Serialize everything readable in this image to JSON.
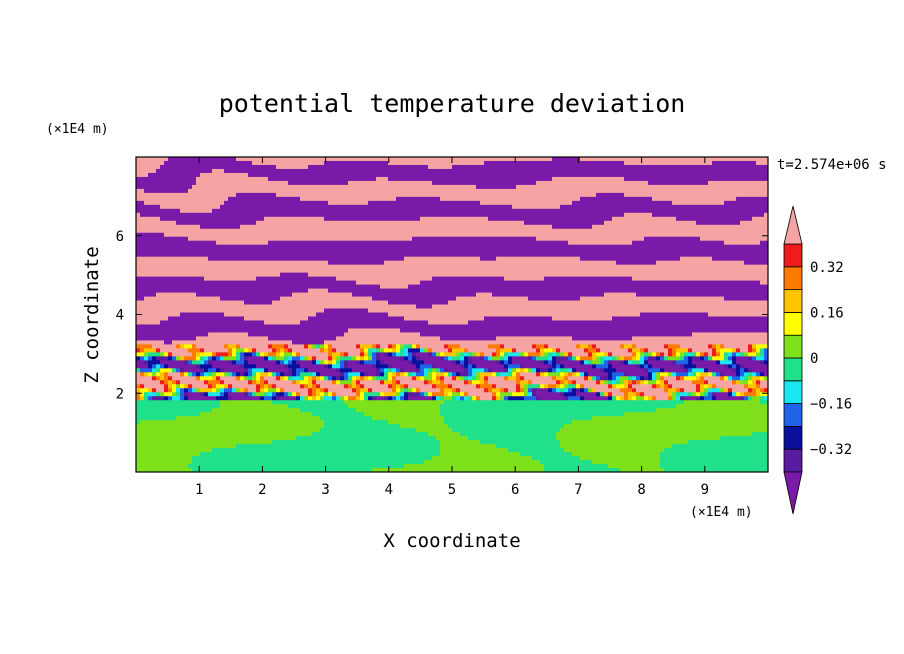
{
  "chart_data": {
    "type": "heatmap",
    "title": "potential temperature deviation",
    "xlabel": "X coordinate",
    "ylabel": "Z coordinate",
    "x_unit": "(×1E4 m)",
    "y_unit": "(×1E4 m)",
    "time_label": "t=2.574e+06 s",
    "xlim": [
      0,
      10
    ],
    "ylim": [
      0,
      8
    ],
    "x_ticks": [
      "1",
      "2",
      "3",
      "4",
      "5",
      "6",
      "7",
      "8",
      "9"
    ],
    "y_ticks": [
      "2",
      "4",
      "6"
    ],
    "colorbar": {
      "levels": [
        {
          "min": null,
          "max": -0.4,
          "color": "#7a1aa8",
          "extend": "min"
        },
        {
          "min": -0.4,
          "max": -0.32,
          "color": "#5b1ba0"
        },
        {
          "min": -0.32,
          "max": -0.24,
          "color": "#0b0f9e"
        },
        {
          "min": -0.24,
          "max": -0.16,
          "color": "#1e63e8"
        },
        {
          "min": -0.16,
          "max": -0.08,
          "color": "#19e6f0"
        },
        {
          "min": -0.08,
          "max": 0,
          "color": "#20e08a"
        },
        {
          "min": 0,
          "max": 0.08,
          "color": "#7fe01c"
        },
        {
          "min": 0.08,
          "max": 0.16,
          "color": "#ffff00"
        },
        {
          "min": 0.16,
          "max": 0.24,
          "color": "#ffc400"
        },
        {
          "min": 0.24,
          "max": 0.32,
          "color": "#ff7a00"
        },
        {
          "min": 0.32,
          "max": 0.4,
          "color": "#ee1c1c"
        },
        {
          "min": 0.4,
          "max": null,
          "color": "#f5a3a3",
          "extend": "max"
        }
      ],
      "tick_labels": [
        "0.32",
        "0.16",
        "0",
        "−0.16",
        "−0.32"
      ]
    },
    "regions": [
      {
        "z_range": [
          0,
          1.8
        ],
        "description": "lower layer",
        "dominant_values": [
          -0.08,
          0.08
        ],
        "colors": [
          "#7fe01c",
          "#20e08a"
        ]
      },
      {
        "z_range": [
          1.8,
          3.2
        ],
        "description": "mixed layer",
        "dominant_values": [
          -0.4,
          0.4
        ],
        "colors": [
          "#ee1c1c",
          "#ffff00",
          "#20e08a",
          "#19e6f0",
          "#f5a3a3",
          "#7a1aa8"
        ]
      },
      {
        "z_range": [
          3.2,
          8
        ],
        "description": "upper layer",
        "dominant_values": [
          -0.5,
          0.5
        ],
        "colors": [
          "#f5a3a3",
          "#7a1aa8"
        ]
      }
    ]
  }
}
